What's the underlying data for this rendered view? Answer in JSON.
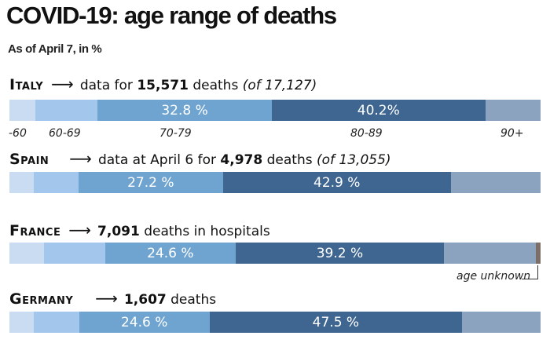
{
  "header": {
    "title": "COVID-19: age range of deaths",
    "subtitle": "As of April 7, in %"
  },
  "colors": {
    "under60": "#c9dcf1",
    "60-69": "#a3c6ec",
    "70-79": "#6fa4d1",
    "80-89": "#3f6691",
    "90plus": "#8ca3bf",
    "unknown": "#7b6f67"
  },
  "chart_data": {
    "type": "bar",
    "orientation": "horizontal-stacked-100",
    "title": "COVID-19: age range of deaths",
    "subtitle": "As of April 7, in %",
    "categories": [
      "-60",
      "60-69",
      "70-79",
      "80-89",
      "90+",
      "age unknown"
    ],
    "xlim": [
      0,
      100
    ],
    "series": [
      {
        "name": "Italy",
        "note_prefix": "data for",
        "note_bold": "15,571",
        "note_mid": "deaths",
        "note_italic": "(of 17,127)",
        "values": [
          4.9,
          11.7,
          32.8,
          40.2,
          10.4,
          0
        ],
        "labels": [
          "",
          "",
          "32.8 %",
          "40.2%",
          "",
          ""
        ]
      },
      {
        "name": "Spain",
        "note_prefix": "data at April 6 for",
        "note_bold": "4,978",
        "note_mid": "deaths",
        "note_italic": "(of 13,055)",
        "values": [
          4.6,
          8.4,
          27.2,
          42.9,
          16.9,
          0
        ],
        "labels": [
          "",
          "",
          "27.2 %",
          "42.9 %",
          "",
          ""
        ]
      },
      {
        "name": "France",
        "note_prefix": "",
        "note_bold": "7,091",
        "note_mid": "deaths in hospitals",
        "note_italic": "",
        "values": [
          6.5,
          11.5,
          24.6,
          39.2,
          17.3,
          0.9
        ],
        "labels": [
          "",
          "",
          "24.6 %",
          "39.2 %",
          "",
          ""
        ]
      },
      {
        "name": "Germany",
        "note_prefix": "",
        "note_bold": "1,607",
        "note_mid": "deaths",
        "note_italic": "",
        "values": [
          4.6,
          8.5,
          24.6,
          47.5,
          14.8,
          0
        ],
        "labels": [
          "",
          "",
          "24.6 %",
          "47.5 %",
          "",
          ""
        ]
      }
    ],
    "age_axis_labels": [
      "-60",
      "60-69",
      "70-79",
      "80-89",
      "90+"
    ],
    "annotations": [
      "age unknown"
    ]
  }
}
